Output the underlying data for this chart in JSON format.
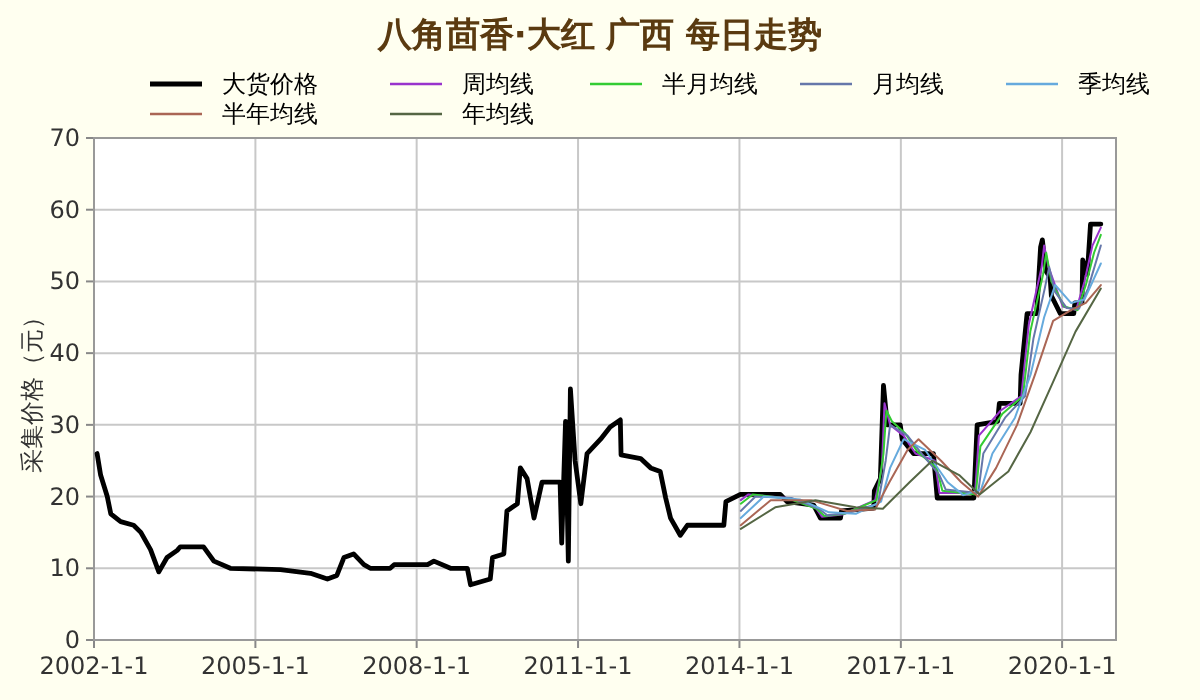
{
  "chart_data": {
    "type": "line",
    "title": "八角茴香·大红 广西 每日走势",
    "ylabel": "采集价格（元）",
    "xlim": [
      "2002-01-01",
      "2021-01-01"
    ],
    "xticks": [
      {
        "value": "2002-01-01",
        "label": "2002-1-1"
      },
      {
        "value": "2005-01-01",
        "label": "2005-1-1"
      },
      {
        "value": "2008-01-01",
        "label": "2008-1-1"
      },
      {
        "value": "2011-01-01",
        "label": "2011-1-1"
      },
      {
        "value": "2014-01-01",
        "label": "2014-1-1"
      },
      {
        "value": "2017-01-01",
        "label": "2017-1-1"
      },
      {
        "value": "2020-01-01",
        "label": "2020-1-1"
      }
    ],
    "ylim": [
      0,
      70
    ],
    "yticks": [
      0,
      10,
      20,
      30,
      40,
      50,
      60,
      70
    ],
    "grid": true,
    "legend": "top",
    "line_style": "solid",
    "marker": "none",
    "series": [
      {
        "name": "大货价格",
        "color": "#000000",
        "x": [
          "2002-01-22",
          "2002-02-15",
          "2002-04-01",
          "2002-04-25",
          "2002-07-01",
          "2002-09-27",
          "2002-11-15",
          "2003-01-20",
          "2003-03-17",
          "2003-05-12",
          "2003-07-20",
          "2003-08-10",
          "2004-01-15",
          "2004-03-25",
          "2004-07-15",
          "2005-06-20",
          "2006-01-10",
          "2006-05-05",
          "2006-07-08",
          "2006-08-25",
          "2006-10-30",
          "2007-01-08",
          "2007-02-20",
          "2007-07-05",
          "2007-08-01",
          "2008-03-15",
          "2008-04-27",
          "2008-08-18",
          "2008-12-10",
          "2009-01-01",
          "2009-05-15",
          "2009-05-30",
          "2009-08-15",
          "2009-09-05",
          "2009-11-15",
          "2009-12-05",
          "2010-01-20",
          "2010-03-08",
          "2010-04-20",
          "2010-05-01",
          "2010-09-01",
          "2010-09-12",
          "2010-10-08",
          "2010-10-27",
          "2010-11-10",
          "2010-12-12",
          "2011-01-20",
          "2011-03-03",
          "2011-06-03",
          "2011-08-07",
          "2011-10-15",
          "2011-10-20",
          "2012-03-01",
          "2012-05-08",
          "2012-07-12",
          "2012-08-18",
          "2012-09-20",
          "2012-11-25",
          "2013-01-12",
          "2013-09-17",
          "2013-10-01",
          "2014-01-08",
          "2014-10-05",
          "2014-11-20",
          "2015-05-20",
          "2015-07-05",
          "2015-11-18",
          "2015-11-25",
          "2016-07-01",
          "2016-07-05",
          "2016-08-15",
          "2016-09-05",
          "2016-10-01",
          "2016-12-28",
          "2017-01-10",
          "2017-03-28",
          "2017-08-10",
          "2017-09-05",
          "2018-05-12",
          "2018-06-03",
          "2018-10-20",
          "2018-11-01",
          "2019-03-22",
          "2019-03-28",
          "2019-05-08",
          "2019-07-12",
          "2019-08-08",
          "2019-08-20",
          "2019-09-12",
          "2019-10-12",
          "2019-10-20",
          "2019-12-20",
          "2020-03-20",
          "2020-03-28",
          "2020-05-15",
          "2020-05-20",
          "2020-06-20",
          "2020-07-12",
          "2020-09-20"
        ],
        "values": [
          26,
          23,
          20,
          17.6,
          16.5,
          16,
          15,
          12.6,
          9.5,
          11.5,
          12.5,
          13,
          13,
          11,
          10,
          9.8,
          9.3,
          8.5,
          9,
          11.5,
          12,
          10.5,
          10,
          10,
          10.5,
          10.5,
          11,
          10,
          10,
          7.7,
          8.5,
          11.5,
          12,
          18,
          19,
          24,
          22.5,
          17,
          21,
          22,
          22,
          13.5,
          30.5,
          11,
          35,
          25,
          19,
          26,
          28,
          29.7,
          30.7,
          25.8,
          25.3,
          24,
          23.5,
          19.8,
          17,
          14.6,
          16,
          16,
          19.3,
          20.3,
          20.3,
          19.3,
          18.8,
          17,
          17,
          18,
          18.4,
          20.8,
          22.5,
          35.5,
          30,
          30,
          28,
          26,
          26,
          19.8,
          19.8,
          30,
          30.5,
          33,
          33,
          37,
          45.5,
          45.5,
          54.8,
          55.8,
          51.5,
          50.5,
          48,
          45.5,
          45.5,
          47,
          47,
          53,
          51,
          58,
          58
        ]
      },
      {
        "name": "周均线",
        "color": "#9933cc",
        "x": [
          "2014-01-10",
          "2014-03-01",
          "2014-11-25",
          "2015-06-01",
          "2015-07-15",
          "2015-12-01",
          "2016-07-10",
          "2016-08-25",
          "2016-09-12",
          "2016-10-20",
          "2017-01-20",
          "2017-04-10",
          "2017-08-20",
          "2017-09-20",
          "2018-05-20",
          "2018-06-15",
          "2018-11-10",
          "2019-03-30",
          "2019-05-20",
          "2019-08-15",
          "2019-09-01",
          "2019-10-01",
          "2020-01-05",
          "2020-04-05",
          "2020-06-01",
          "2020-07-25",
          "2020-09-20"
        ],
        "values": [
          19.5,
          20.3,
          19.8,
          18.5,
          17.2,
          17.5,
          19.5,
          24,
          33,
          30,
          28.5,
          26,
          25,
          20.5,
          20.5,
          28.5,
          32,
          34,
          44,
          52,
          55,
          52,
          46.5,
          46,
          50,
          55,
          57.5
        ]
      },
      {
        "name": "半月均线",
        "color": "#33cc33",
        "x": [
          "2014-01-10",
          "2014-04-01",
          "2014-12-05",
          "2015-06-10",
          "2015-08-01",
          "2015-12-15",
          "2016-07-20",
          "2016-09-05",
          "2016-09-25",
          "2016-11-01",
          "2017-02-01",
          "2017-04-25",
          "2017-09-01",
          "2017-10-10",
          "2018-05-25",
          "2018-06-25",
          "2018-11-20",
          "2019-04-10",
          "2019-05-30",
          "2019-08-25",
          "2019-09-15",
          "2019-10-20",
          "2020-01-15",
          "2020-04-15",
          "2020-06-10",
          "2020-08-05",
          "2020-09-20"
        ],
        "values": [
          19,
          20.3,
          19.7,
          18.3,
          17.3,
          17.6,
          19.5,
          26,
          32,
          30.5,
          28.8,
          26.2,
          24,
          20.8,
          20.3,
          27,
          31.5,
          34,
          43,
          51,
          54,
          50,
          46.5,
          46,
          49.5,
          54,
          56.5
        ]
      },
      {
        "name": "月均线",
        "color": "#6677aa",
        "x": [
          "2014-01-10",
          "2014-04-20",
          "2014-12-20",
          "2015-06-25",
          "2015-08-20",
          "2016-01-05",
          "2016-07-30",
          "2016-09-20",
          "2016-10-20",
          "2017-02-15",
          "2017-05-10",
          "2017-09-20",
          "2017-11-01",
          "2018-06-10",
          "2018-07-15",
          "2018-12-10",
          "2019-04-25",
          "2019-06-20",
          "2019-09-05",
          "2019-10-05",
          "2019-11-15",
          "2020-02-01",
          "2020-04-25",
          "2020-06-25",
          "2020-09-20"
        ],
        "values": [
          18,
          20,
          19.8,
          18.3,
          17.4,
          17.7,
          19,
          25,
          30,
          28.5,
          26.3,
          23,
          21,
          20.5,
          26,
          31,
          34,
          42,
          49,
          52,
          48.5,
          46.3,
          46.2,
          49,
          55
        ]
      },
      {
        "name": "季均线",
        "color": "#66aadd",
        "x": [
          "2014-01-10",
          "2014-06-15",
          "2015-02-15",
          "2015-09-01",
          "2016-03-01",
          "2016-08-20",
          "2016-10-20",
          "2017-01-20",
          "2017-06-15",
          "2017-11-15",
          "2018-03-01",
          "2018-06-30",
          "2018-09-15",
          "2019-02-15",
          "2019-06-01",
          "2019-09-01",
          "2019-11-15",
          "2020-03-01",
          "2020-06-01",
          "2020-09-20"
        ],
        "values": [
          17,
          20,
          19.6,
          17.8,
          17.6,
          19.3,
          24,
          28,
          26.5,
          22,
          20.2,
          21,
          26,
          31,
          37,
          45,
          49.5,
          47,
          47.5,
          52.5
        ]
      },
      {
        "name": "半年均线",
        "color": "#aa6655",
        "x": [
          "2014-01-10",
          "2014-08-01",
          "2015-05-01",
          "2016-01-01",
          "2016-07-10",
          "2016-10-15",
          "2017-02-15",
          "2017-05-01",
          "2017-10-01",
          "2018-02-15",
          "2018-06-10",
          "2018-10-10",
          "2019-03-01",
          "2019-07-01",
          "2019-11-01",
          "2020-03-01",
          "2020-06-10",
          "2020-09-20"
        ],
        "values": [
          16,
          19.5,
          19.5,
          18,
          18.2,
          22,
          26.5,
          28,
          25,
          22,
          20,
          24,
          30,
          37,
          44.5,
          46,
          47,
          49.5
        ]
      },
      {
        "name": "年均线",
        "color": "#556644",
        "x": [
          "2014-01-10",
          "2014-09-01",
          "2015-06-01",
          "2016-03-01",
          "2016-09-01",
          "2017-03-01",
          "2017-08-01",
          "2018-02-01",
          "2018-06-20",
          "2019-01-01",
          "2019-06-01",
          "2019-11-01",
          "2020-04-01",
          "2020-09-20"
        ],
        "values": [
          15.5,
          18.5,
          19.5,
          18.5,
          18.3,
          22,
          25,
          23,
          20.3,
          23.5,
          29,
          36,
          43,
          49
        ]
      }
    ]
  }
}
